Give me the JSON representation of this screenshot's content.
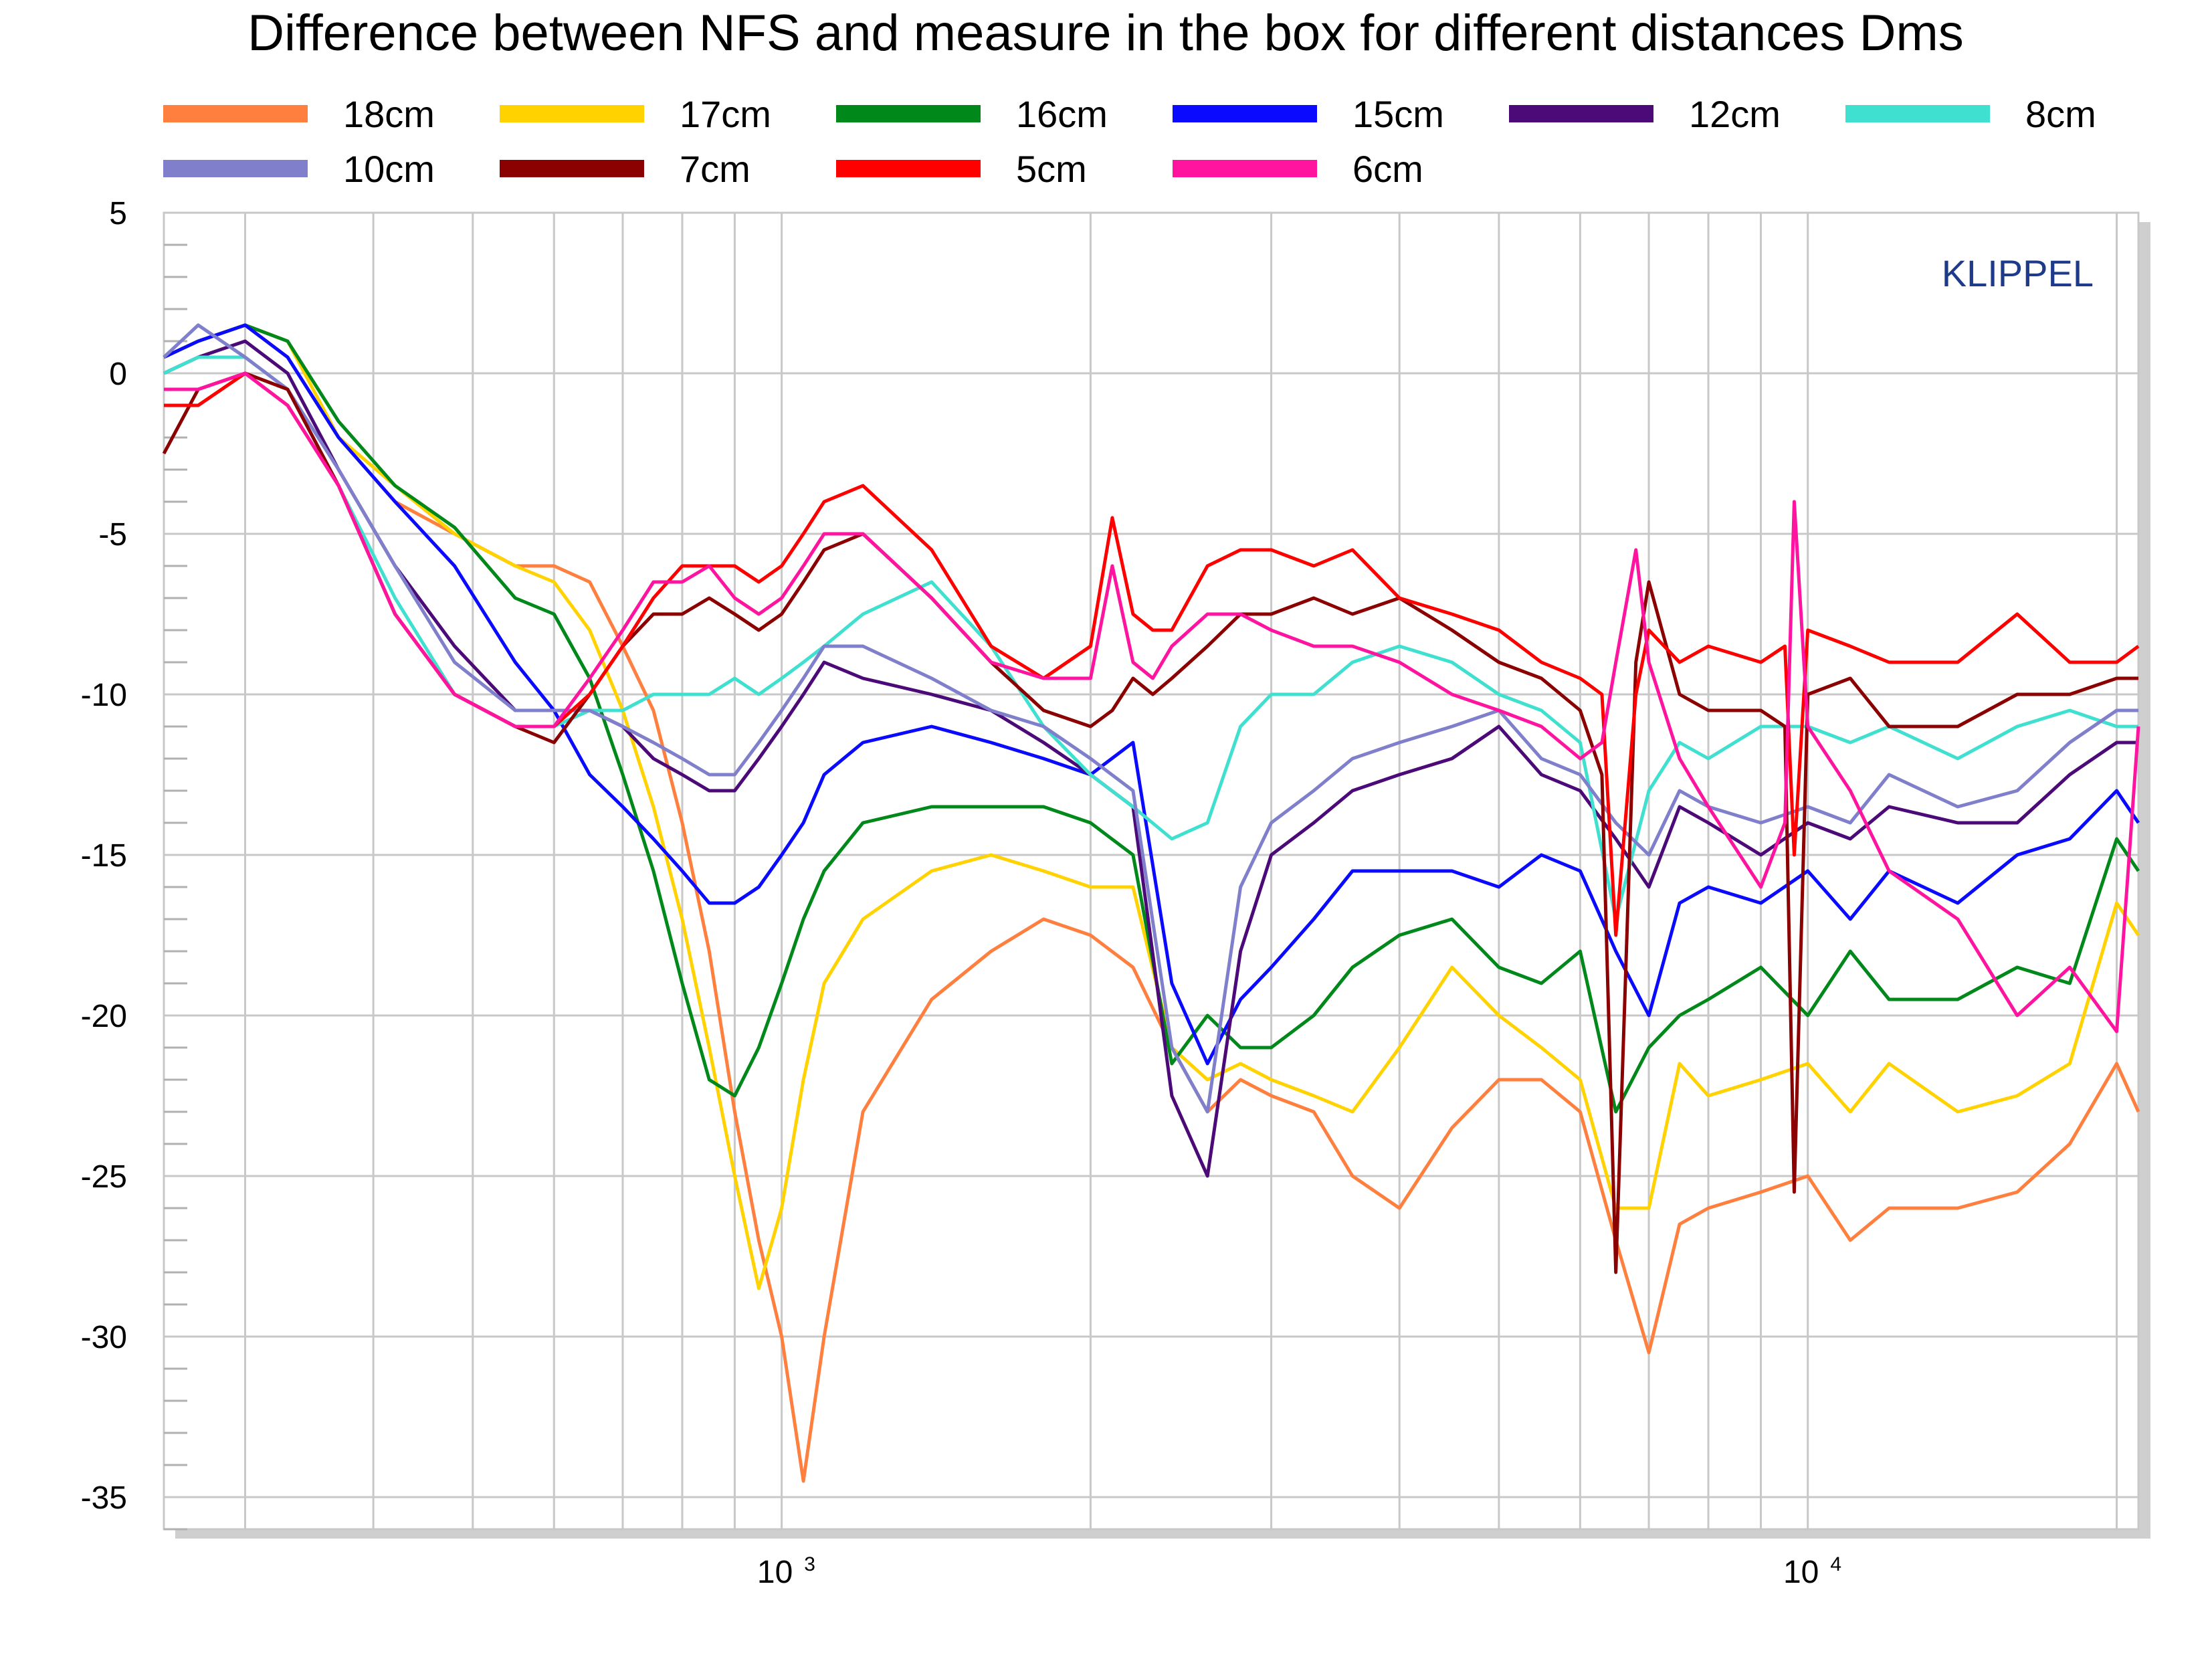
{
  "chart_data": {
    "type": "line",
    "title": "Difference between NFS and measure in the box for different distances Dms",
    "watermark": "KLIPPEL",
    "xlabel": "",
    "ylabel": "",
    "xscale": "log",
    "xlim": [
      250,
      21000
    ],
    "ylim": [
      -36,
      5
    ],
    "yticks": [
      5,
      0,
      -5,
      -10,
      -15,
      -20,
      -25,
      -30,
      -35
    ],
    "ytick_labels": [
      "5",
      "0",
      "-5",
      "-10",
      "-15",
      "-20",
      "-25",
      "-30",
      "-35"
    ],
    "xticks": [
      1000,
      10000
    ],
    "xtick_labels": [
      {
        "base": "10",
        "exp": "3"
      },
      {
        "base": "10",
        "exp": "4"
      }
    ],
    "legend_position": "top",
    "series": [
      {
        "name": "18cm",
        "color": "#ff7f3f",
        "x": [
          250,
          270,
          300,
          330,
          370,
          420,
          480,
          550,
          600,
          650,
          700,
          750,
          800,
          850,
          900,
          950,
          1000,
          1050,
          1100,
          1200,
          1400,
          1600,
          1800,
          2000,
          2200,
          2400,
          2600,
          2800,
          3000,
          3300,
          3600,
          4000,
          4500,
          5000,
          5500,
          6000,
          6500,
          7000,
          7500,
          8000,
          9000,
          10000,
          11000,
          12000,
          14000,
          16000,
          18000,
          20000,
          21000
        ],
        "y": [
          0.5,
          1.0,
          1.5,
          0.5,
          -2.0,
          -4.0,
          -5.0,
          -6.0,
          -6.0,
          -6.5,
          -8.5,
          -10.5,
          -14.0,
          -18.0,
          -23.0,
          -27.0,
          -30.0,
          -34.5,
          -30.0,
          -23.0,
          -19.5,
          -18.0,
          -17.0,
          -17.5,
          -18.5,
          -21.0,
          -23.0,
          -22.0,
          -22.5,
          -23.0,
          -25.0,
          -26.0,
          -23.5,
          -22.0,
          -22.0,
          -23.0,
          -27.0,
          -30.5,
          -26.5,
          -26.0,
          -25.5,
          -25.0,
          -27.0,
          -26.0,
          -26.0,
          -25.5,
          -24.0,
          -21.5,
          -23.0
        ]
      },
      {
        "name": "17cm",
        "color": "#ffd200",
        "x": [
          250,
          270,
          300,
          330,
          370,
          420,
          480,
          550,
          600,
          650,
          700,
          750,
          800,
          850,
          900,
          950,
          1000,
          1050,
          1100,
          1200,
          1400,
          1600,
          1800,
          2000,
          2200,
          2400,
          2600,
          2800,
          3000,
          3300,
          3600,
          4000,
          4500,
          5000,
          5500,
          6000,
          6500,
          7000,
          7500,
          8000,
          9000,
          10000,
          11000,
          12000,
          14000,
          16000,
          18000,
          20000,
          21000
        ],
        "y": [
          0.5,
          1.0,
          1.5,
          1.0,
          -2.0,
          -3.5,
          -5.0,
          -6.0,
          -6.5,
          -8.0,
          -10.5,
          -13.5,
          -17.0,
          -21.0,
          -25.0,
          -28.5,
          -26.0,
          -22.0,
          -19.0,
          -17.0,
          -15.5,
          -15.0,
          -15.5,
          -16.0,
          -16.0,
          -21.0,
          -22.0,
          -21.5,
          -22.0,
          -22.5,
          -23.0,
          -21.0,
          -18.5,
          -20.0,
          -21.0,
          -22.0,
          -26.0,
          -26.0,
          -21.5,
          -22.5,
          -22.0,
          -21.5,
          -23.0,
          -21.5,
          -23.0,
          -22.5,
          -21.5,
          -16.5,
          -17.5
        ]
      },
      {
        "name": "16cm",
        "color": "#00891a",
        "x": [
          250,
          270,
          300,
          330,
          370,
          420,
          480,
          550,
          600,
          650,
          700,
          750,
          800,
          850,
          900,
          950,
          1000,
          1050,
          1100,
          1200,
          1400,
          1600,
          1800,
          2000,
          2200,
          2400,
          2600,
          2800,
          3000,
          3300,
          3600,
          4000,
          4500,
          5000,
          5500,
          6000,
          6500,
          7000,
          7500,
          8000,
          9000,
          10000,
          11000,
          12000,
          14000,
          16000,
          18000,
          20000,
          21000
        ],
        "y": [
          0.5,
          1.0,
          1.5,
          1.0,
          -1.5,
          -3.5,
          -4.8,
          -7.0,
          -7.5,
          -9.5,
          -12.5,
          -15.5,
          -19.0,
          -22.0,
          -22.5,
          -21.0,
          -19.0,
          -17.0,
          -15.5,
          -14.0,
          -13.5,
          -13.5,
          -13.5,
          -14.0,
          -15.0,
          -21.5,
          -20.0,
          -21.0,
          -21.0,
          -20.0,
          -18.5,
          -17.5,
          -17.0,
          -18.5,
          -19.0,
          -18.0,
          -23.0,
          -21.0,
          -20.0,
          -19.5,
          -18.5,
          -20.0,
          -18.0,
          -19.5,
          -19.5,
          -18.5,
          -19.0,
          -14.5,
          -15.5
        ]
      },
      {
        "name": "15cm",
        "color": "#0a0aff",
        "x": [
          250,
          270,
          300,
          330,
          370,
          420,
          480,
          550,
          600,
          650,
          700,
          750,
          800,
          850,
          900,
          950,
          1000,
          1050,
          1100,
          1200,
          1400,
          1600,
          1800,
          2000,
          2200,
          2400,
          2600,
          2800,
          3000,
          3300,
          3600,
          4000,
          4500,
          5000,
          5500,
          6000,
          6500,
          7000,
          7500,
          8000,
          9000,
          10000,
          11000,
          12000,
          14000,
          16000,
          18000,
          20000,
          21000
        ],
        "y": [
          0.5,
          1.0,
          1.5,
          0.5,
          -2.0,
          -4.0,
          -6.0,
          -9.0,
          -10.5,
          -12.5,
          -13.5,
          -14.5,
          -15.5,
          -16.5,
          -16.5,
          -16.0,
          -15.0,
          -14.0,
          -12.5,
          -11.5,
          -11.0,
          -11.5,
          -12.0,
          -12.5,
          -11.5,
          -19.0,
          -21.5,
          -19.5,
          -18.5,
          -17.0,
          -15.5,
          -15.5,
          -15.5,
          -16.0,
          -15.0,
          -15.5,
          -18.0,
          -20.0,
          -16.5,
          -16.0,
          -16.5,
          -15.5,
          -17.0,
          -15.5,
          -16.5,
          -15.0,
          -14.5,
          -13.0,
          -14.0
        ]
      },
      {
        "name": "12cm",
        "color": "#4b0a78",
        "x": [
          250,
          270,
          300,
          330,
          370,
          420,
          480,
          550,
          600,
          650,
          700,
          750,
          800,
          850,
          900,
          950,
          1000,
          1050,
          1100,
          1200,
          1400,
          1600,
          1800,
          2000,
          2200,
          2400,
          2600,
          2800,
          3000,
          3300,
          3600,
          4000,
          4500,
          5000,
          5500,
          6000,
          6500,
          7000,
          7500,
          8000,
          9000,
          10000,
          11000,
          12000,
          14000,
          16000,
          18000,
          20000,
          21000
        ],
        "y": [
          0.0,
          0.5,
          1.0,
          0.0,
          -3.0,
          -6.0,
          -8.5,
          -10.5,
          -10.5,
          -10.5,
          -11.0,
          -12.0,
          -12.5,
          -13.0,
          -13.0,
          -12.0,
          -11.0,
          -10.0,
          -9.0,
          -9.5,
          -10.0,
          -10.5,
          -11.5,
          -12.5,
          -13.5,
          -22.5,
          -25.0,
          -18.0,
          -15.0,
          -14.0,
          -13.0,
          -12.5,
          -12.0,
          -11.0,
          -12.5,
          -13.0,
          -14.5,
          -16.0,
          -13.5,
          -14.0,
          -15.0,
          -14.0,
          -14.5,
          -13.5,
          -14.0,
          -14.0,
          -12.5,
          -11.5,
          -11.5
        ]
      },
      {
        "name": "8cm",
        "color": "#40e0d0",
        "x": [
          250,
          270,
          300,
          330,
          370,
          420,
          480,
          550,
          600,
          650,
          700,
          750,
          800,
          850,
          900,
          950,
          1000,
          1050,
          1100,
          1200,
          1400,
          1600,
          1800,
          2000,
          2200,
          2400,
          2600,
          2800,
          3000,
          3300,
          3600,
          4000,
          4500,
          5000,
          5500,
          6000,
          6500,
          7000,
          7500,
          8000,
          9000,
          10000,
          11000,
          12000,
          14000,
          16000,
          18000,
          20000,
          21000
        ],
        "y": [
          0.0,
          0.5,
          0.5,
          -0.5,
          -3.5,
          -7.0,
          -10.0,
          -11.0,
          -11.0,
          -10.5,
          -10.5,
          -10.0,
          -10.0,
          -10.0,
          -9.5,
          -10.0,
          -9.5,
          -9.0,
          -8.5,
          -7.5,
          -6.5,
          -8.5,
          -11.0,
          -12.5,
          -13.5,
          -14.5,
          -14.0,
          -11.0,
          -10.0,
          -10.0,
          -9.0,
          -8.5,
          -9.0,
          -10.0,
          -10.5,
          -11.5,
          -17.0,
          -13.0,
          -11.5,
          -12.0,
          -11.0,
          -11.0,
          -11.5,
          -11.0,
          -12.0,
          -11.0,
          -10.5,
          -11.0,
          -11.0
        ]
      },
      {
        "name": "10cm",
        "color": "#7f7fcc",
        "x": [
          250,
          270,
          300,
          330,
          370,
          420,
          480,
          550,
          600,
          650,
          700,
          750,
          800,
          850,
          900,
          950,
          1000,
          1050,
          1100,
          1200,
          1400,
          1600,
          1800,
          2000,
          2200,
          2400,
          2600,
          2800,
          3000,
          3300,
          3600,
          4000,
          4500,
          5000,
          5500,
          6000,
          6500,
          7000,
          7500,
          8000,
          9000,
          10000,
          11000,
          12000,
          14000,
          16000,
          18000,
          20000,
          21000
        ],
        "y": [
          0.5,
          1.5,
          0.5,
          -0.5,
          -3.0,
          -6.0,
          -9.0,
          -10.5,
          -10.5,
          -10.5,
          -11.0,
          -11.5,
          -12.0,
          -12.5,
          -12.5,
          -11.5,
          -10.5,
          -9.5,
          -8.5,
          -8.5,
          -9.5,
          -10.5,
          -11.0,
          -12.0,
          -13.0,
          -21.0,
          -23.0,
          -16.0,
          -14.0,
          -13.0,
          -12.0,
          -11.5,
          -11.0,
          -10.5,
          -12.0,
          -12.5,
          -14.0,
          -15.0,
          -13.0,
          -13.5,
          -14.0,
          -13.5,
          -14.0,
          -12.5,
          -13.5,
          -13.0,
          -11.5,
          -10.5,
          -10.5
        ]
      },
      {
        "name": "7cm",
        "color": "#8b0000",
        "x": [
          250,
          270,
          300,
          330,
          370,
          420,
          480,
          550,
          600,
          650,
          700,
          750,
          800,
          850,
          900,
          950,
          1000,
          1050,
          1100,
          1200,
          1400,
          1600,
          1800,
          2000,
          2100,
          2200,
          2300,
          2400,
          2600,
          2800,
          3000,
          3300,
          3600,
          4000,
          4500,
          5000,
          5500,
          6000,
          6300,
          6500,
          6800,
          7000,
          7500,
          8000,
          9000,
          9500,
          9700,
          10000,
          11000,
          12000,
          14000,
          16000,
          18000,
          20000,
          21000
        ],
        "y": [
          -2.5,
          -0.5,
          0.0,
          -0.5,
          -3.5,
          -7.5,
          -10.0,
          -11.0,
          -11.5,
          -10.0,
          -8.5,
          -7.5,
          -7.5,
          -7.0,
          -7.5,
          -8.0,
          -7.5,
          -6.5,
          -5.5,
          -5.0,
          -7.0,
          -9.0,
          -10.5,
          -11.0,
          -10.5,
          -9.5,
          -10.0,
          -9.5,
          -8.5,
          -7.5,
          -7.5,
          -7.0,
          -7.5,
          -7.0,
          -8.0,
          -9.0,
          -9.5,
          -10.5,
          -12.5,
          -28.0,
          -9.0,
          -6.5,
          -10.0,
          -10.5,
          -10.5,
          -11.0,
          -25.5,
          -10.0,
          -9.5,
          -11.0,
          -11.0,
          -10.0,
          -10.0,
          -9.5,
          -9.5
        ]
      },
      {
        "name": "5cm",
        "color": "#ff0000",
        "x": [
          250,
          270,
          300,
          330,
          370,
          420,
          480,
          550,
          600,
          650,
          700,
          750,
          800,
          850,
          900,
          950,
          1000,
          1050,
          1100,
          1200,
          1400,
          1600,
          1800,
          2000,
          2100,
          2200,
          2300,
          2400,
          2600,
          2800,
          3000,
          3300,
          3600,
          4000,
          4500,
          5000,
          5500,
          6000,
          6300,
          6500,
          6800,
          7000,
          7500,
          8000,
          9000,
          9500,
          9700,
          10000,
          11000,
          12000,
          14000,
          16000,
          18000,
          20000,
          21000
        ],
        "y": [
          -1.0,
          -1.0,
          0.0,
          -1.0,
          -3.5,
          -7.5,
          -10.0,
          -11.0,
          -11.0,
          -10.0,
          -8.5,
          -7.0,
          -6.0,
          -6.0,
          -6.0,
          -6.5,
          -6.0,
          -5.0,
          -4.0,
          -3.5,
          -5.5,
          -8.5,
          -9.5,
          -8.5,
          -4.5,
          -7.5,
          -8.0,
          -8.0,
          -6.0,
          -5.5,
          -5.5,
          -6.0,
          -5.5,
          -7.0,
          -7.5,
          -8.0,
          -9.0,
          -9.5,
          -10.0,
          -17.5,
          -10.0,
          -8.0,
          -9.0,
          -8.5,
          -9.0,
          -8.5,
          -15.0,
          -8.0,
          -8.5,
          -9.0,
          -9.0,
          -7.5,
          -9.0,
          -9.0,
          -8.5
        ]
      },
      {
        "name": "6cm",
        "color": "#ff149f",
        "x": [
          250,
          270,
          300,
          330,
          370,
          420,
          480,
          550,
          600,
          650,
          700,
          750,
          800,
          850,
          900,
          950,
          1000,
          1050,
          1100,
          1200,
          1400,
          1600,
          1800,
          2000,
          2100,
          2200,
          2300,
          2400,
          2600,
          2800,
          3000,
          3300,
          3600,
          4000,
          4500,
          5000,
          5500,
          6000,
          6300,
          6500,
          6800,
          7000,
          7500,
          8000,
          9000,
          9500,
          9700,
          10000,
          11000,
          12000,
          14000,
          16000,
          18000,
          20000,
          21000
        ],
        "y": [
          -0.5,
          -0.5,
          0.0,
          -1.0,
          -3.5,
          -7.5,
          -10.0,
          -11.0,
          -11.0,
          -9.5,
          -8.0,
          -6.5,
          -6.5,
          -6.0,
          -7.0,
          -7.5,
          -7.0,
          -6.0,
          -5.0,
          -5.0,
          -7.0,
          -9.0,
          -9.5,
          -9.5,
          -6.0,
          -9.0,
          -9.5,
          -8.5,
          -7.5,
          -7.5,
          -8.0,
          -8.5,
          -8.5,
          -9.0,
          -10.0,
          -10.5,
          -11.0,
          -12.0,
          -11.5,
          -9.0,
          -5.5,
          -9.0,
          -12.0,
          -13.5,
          -16.0,
          -14.0,
          -4.0,
          -11.0,
          -13.0,
          -15.5,
          -17.0,
          -20.0,
          -18.5,
          -20.5,
          -11.0
        ]
      }
    ]
  }
}
